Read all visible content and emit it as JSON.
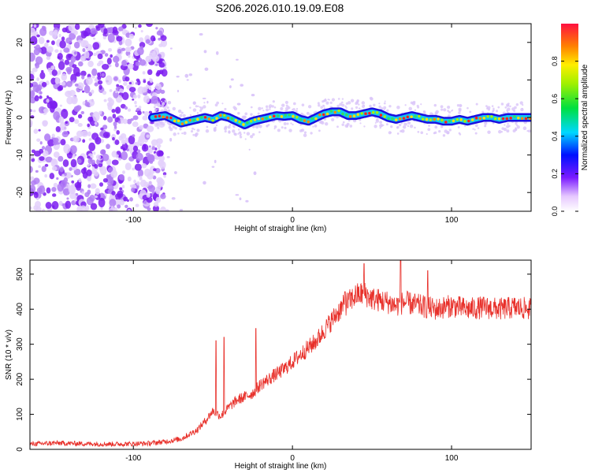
{
  "figure_title": "S206.2026.010.19.09.E08",
  "colors": {
    "trace": "#e8302a",
    "scatter": "#8a2be2",
    "axis": "#000000"
  },
  "colorbar": {
    "label": "Normalized spectral amplitude",
    "ticks": [
      "0.0",
      "0.2",
      "0.4",
      "0.6",
      "0.8"
    ],
    "range": [
      0,
      1
    ]
  },
  "chart_data": [
    {
      "type": "heatmap",
      "title": "",
      "xlabel": "Height of straight line (km)",
      "ylabel": "Frequency (Hz)",
      "xlim": [
        -165,
        150
      ],
      "ylim": [
        -25,
        25
      ],
      "xticks": [
        -100,
        0,
        100
      ],
      "xtick_labels": [
        "-100",
        "0",
        "100"
      ],
      "yticks": [
        -20,
        -10,
        0,
        10,
        20
      ],
      "ytick_labels": [
        "-20",
        "-10",
        "0",
        "10",
        "20"
      ],
      "noise_region_x": [
        -165,
        -80
      ],
      "signal_start_x": -88,
      "ridge_x": [
        -88,
        -80,
        -75,
        -70,
        -65,
        -60,
        -55,
        -50,
        -45,
        -40,
        -35,
        -30,
        -25,
        -20,
        -15,
        -10,
        -5,
        0,
        5,
        10,
        15,
        20,
        25,
        30,
        35,
        40,
        45,
        50,
        55,
        60,
        65,
        70,
        75,
        80,
        85,
        90,
        95,
        100,
        105,
        110,
        115,
        120,
        125,
        130,
        135,
        140,
        145,
        150
      ],
      "ridge_freq": [
        0.0,
        0.5,
        -0.5,
        -1.5,
        -1.0,
        -0.5,
        0.0,
        -0.5,
        0.5,
        0.0,
        -1.0,
        -2.0,
        -1.0,
        -0.5,
        0.0,
        0.5,
        0.3,
        0.5,
        -0.5,
        -1.0,
        0.0,
        1.0,
        1.5,
        1.5,
        0.5,
        0.5,
        1.0,
        1.5,
        1.0,
        0.0,
        -0.5,
        0.0,
        0.5,
        0.0,
        -0.5,
        -0.5,
        -1.0,
        -1.0,
        -0.5,
        -1.0,
        -0.5,
        0.0,
        0.0,
        -0.5,
        0.0,
        0.0,
        0.0,
        0.0
      ]
    },
    {
      "type": "line",
      "title": "",
      "xlabel": "Height of straight line (km)",
      "ylabel": "SNR (10 * v/v)",
      "xlim": [
        -165,
        150
      ],
      "ylim": [
        0,
        540
      ],
      "xticks": [
        -100,
        0,
        100
      ],
      "xtick_labels": [
        "-100",
        "0",
        "100"
      ],
      "yticks": [
        0,
        100,
        200,
        300,
        400,
        500
      ],
      "ytick_labels": [
        "0",
        "100",
        "200",
        "300",
        "400",
        "500"
      ],
      "series": [
        {
          "name": "SNR",
          "x": [
            -165,
            -150,
            -130,
            -110,
            -90,
            -80,
            -70,
            -60,
            -55,
            -50,
            -45,
            -40,
            -35,
            -30,
            -25,
            -20,
            -15,
            -10,
            -5,
            0,
            5,
            10,
            15,
            20,
            25,
            30,
            35,
            40,
            45,
            50,
            55,
            60,
            65,
            70,
            75,
            80,
            90,
            100,
            110,
            120,
            130,
            140,
            150
          ],
          "values": [
            15,
            18,
            16,
            15,
            17,
            22,
            30,
            55,
            80,
            110,
            95,
            120,
            140,
            150,
            160,
            185,
            200,
            215,
            230,
            250,
            270,
            290,
            310,
            340,
            370,
            400,
            420,
            440,
            445,
            430,
            425,
            420,
            410,
            420,
            415,
            410,
            400,
            410,
            400,
            405,
            400,
            405,
            400
          ],
          "spikes": [
            {
              "x": -48,
              "value": 310
            },
            {
              "x": -43,
              "value": 320
            },
            {
              "x": -23,
              "value": 345
            },
            {
              "x": 33,
              "value": 450
            },
            {
              "x": 45,
              "value": 530
            },
            {
              "x": 68,
              "value": 540
            },
            {
              "x": 85,
              "value": 510
            }
          ],
          "noise_amplitude": 28
        }
      ]
    }
  ]
}
